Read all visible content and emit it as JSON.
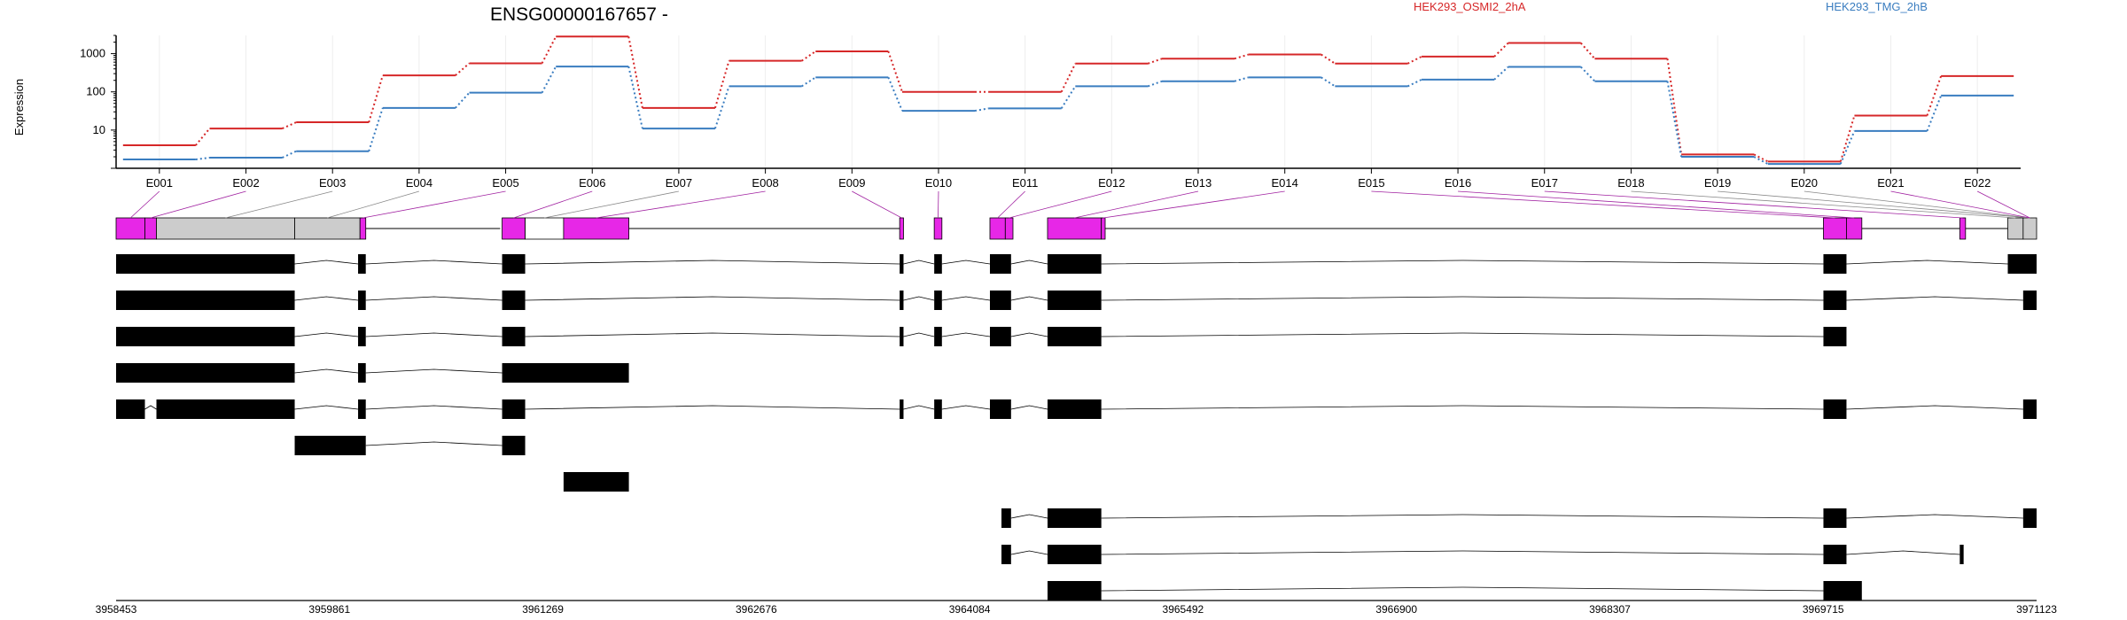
{
  "chart_data": {
    "type": "line",
    "title": "ENSG00000167657 -",
    "ylabel": "Expression",
    "y_scale": "log10",
    "y_ticks": [
      10,
      100,
      1000
    ],
    "ylim": [
      1,
      3000
    ],
    "categories": [
      "E001",
      "E002",
      "E003",
      "E004",
      "E005",
      "E006",
      "E007",
      "E008",
      "E009",
      "E010",
      "E011",
      "E012",
      "E013",
      "E014",
      "E015",
      "E016",
      "E017",
      "E018",
      "E019",
      "E020",
      "E021",
      "E022"
    ],
    "series": [
      {
        "name": "HEK293_OSMI2_2hA",
        "color": "#d62728",
        "values": [
          4,
          11,
          16,
          270,
          560,
          2800,
          38,
          650,
          1150,
          100,
          100,
          550,
          740,
          950,
          550,
          840,
          1900,
          740,
          2.3,
          1.5,
          24,
          260
        ]
      },
      {
        "name": "HEK293_TMG_2hB",
        "color": "#3a7dc0",
        "values": [
          1.7,
          1.9,
          2.8,
          38,
          95,
          460,
          11,
          140,
          240,
          32,
          37,
          140,
          190,
          240,
          140,
          210,
          450,
          190,
          2.0,
          1.3,
          9.5,
          80
        ]
      }
    ],
    "gene_model": {
      "bin_colors": [
        "#e727e7",
        "#e727e7",
        "#cccccc",
        "#cccccc",
        "#e727e7",
        "#e727e7",
        "#ffffff",
        "#e727e7",
        "#e727e7",
        "#e727e7",
        "#e727e7",
        "#e727e7",
        "#e727e7",
        "#e727e7",
        "#e727e7",
        "#e727e7",
        "#e727e7",
        "#cccccc",
        "#cccccc",
        "#ffffff",
        "#e727e7",
        "#e727e7"
      ],
      "coordinate_ticks": [
        "3958453",
        "3959861",
        "3961269",
        "3962676",
        "3964084",
        "3965492",
        "3966900",
        "3968307",
        "3969715",
        "3971123"
      ]
    }
  }
}
